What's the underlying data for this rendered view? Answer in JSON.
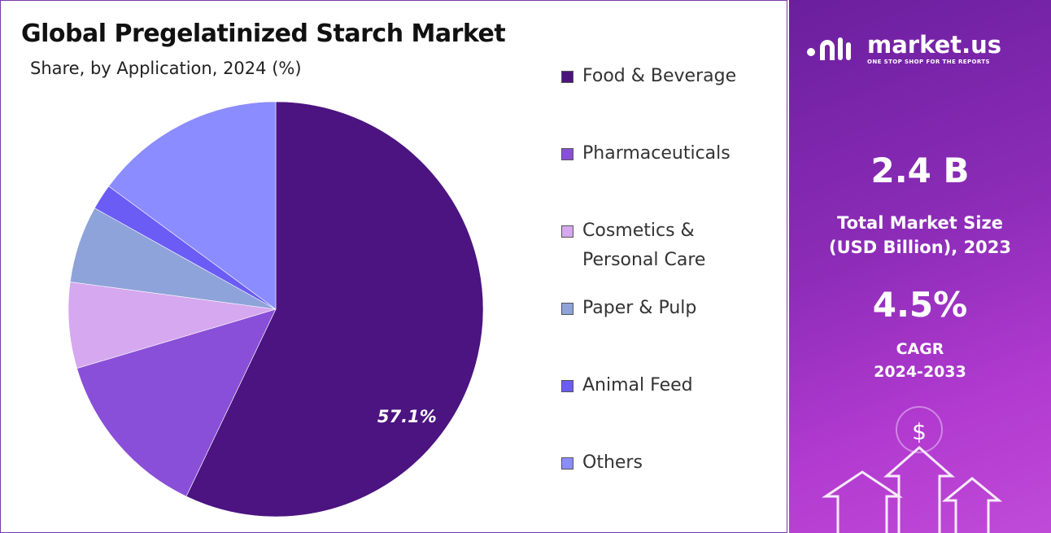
{
  "chart_data": {
    "type": "pie",
    "title": "Global Pregelatinized Starch Market",
    "subtitle": "Share, by Application, 2024 (%)",
    "categories": [
      "Food & Beverage",
      "Pharmaceuticals",
      "Cosmetics & Personal Care",
      "Paper & Pulp",
      "Animal Feed",
      "Others"
    ],
    "values": [
      57.1,
      13.3,
      6.7,
      6,
      2,
      14.9
    ],
    "value_labels": [
      "57.1%",
      null,
      null,
      null,
      null,
      null
    ],
    "colors": [
      "#4b1480",
      "#8a4fd8",
      "#d6a8f0",
      "#8ea3d9",
      "#6b5cf5",
      "#8b8cff"
    ],
    "legend": "right"
  },
  "side_panel": {
    "brand": "market.us",
    "tagline": "ONE STOP SHOP FOR THE REPORTS",
    "market_size": "2.4 B",
    "market_size_label_1": "Total Market Size",
    "market_size_label_2": "(USD Billion), 2023",
    "cagr": "4.5%",
    "cagr_label_1": "CAGR",
    "cagr_label_2": "2024-2033"
  }
}
